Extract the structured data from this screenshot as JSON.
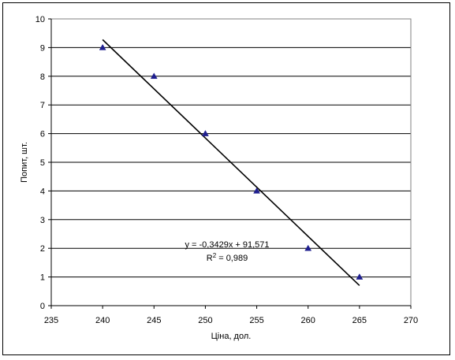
{
  "chart_data": {
    "type": "scatter",
    "title": "",
    "xlabel": "Ціна, дол.",
    "ylabel": "Попит, шт.",
    "xlim": [
      235,
      270
    ],
    "ylim": [
      0,
      10
    ],
    "x_ticks": [
      235,
      240,
      245,
      250,
      255,
      260,
      265,
      270
    ],
    "y_ticks": [
      0,
      1,
      2,
      3,
      4,
      5,
      6,
      7,
      8,
      9,
      10
    ],
    "grid": "horizontal",
    "legend": "none",
    "series": [
      {
        "marker": "triangle",
        "color": "#1f1f8f",
        "points": [
          {
            "x": 240,
            "y": 9
          },
          {
            "x": 245,
            "y": 8
          },
          {
            "x": 250,
            "y": 6
          },
          {
            "x": 255,
            "y": 4
          },
          {
            "x": 260,
            "y": 2
          },
          {
            "x": 265,
            "y": 1
          }
        ]
      }
    ],
    "trendline": {
      "type": "linear",
      "slope": -0.3429,
      "intercept": 91.571,
      "x_range": [
        240,
        265
      ],
      "equation_label": "y = -0,3429x + 91,571",
      "r2_label_prefix": "R",
      "r2_label_suffix": " = 0,989",
      "color": "#000000"
    }
  }
}
